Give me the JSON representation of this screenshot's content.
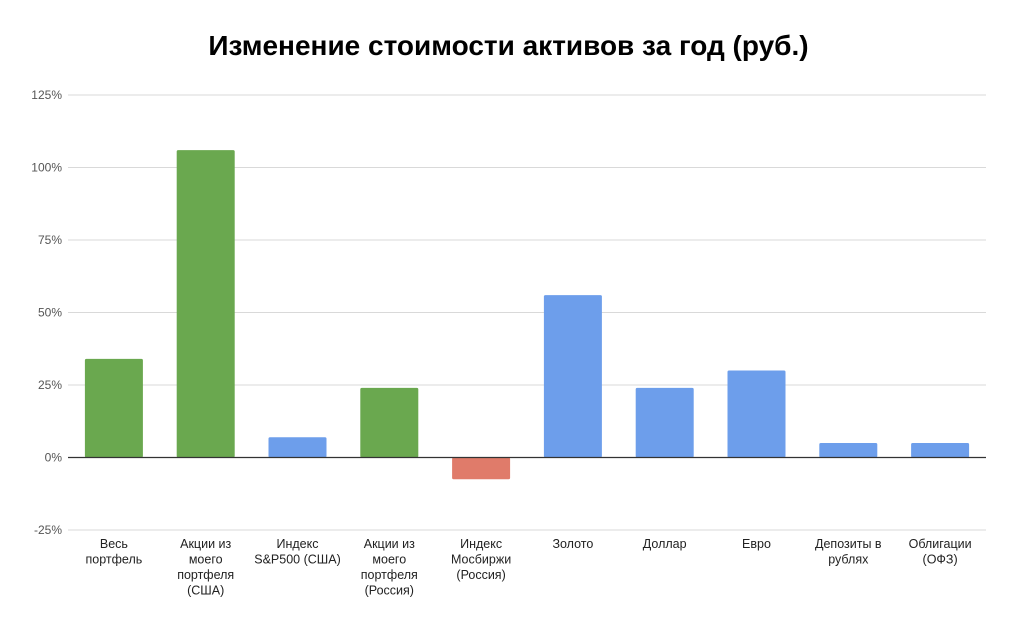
{
  "chart_data": {
    "type": "bar",
    "title": "Изменение стоимости активов за год (руб.)",
    "xlabel": "",
    "ylabel": "",
    "ylim": [
      -25,
      125
    ],
    "yticks": [
      -25,
      0,
      25,
      50,
      75,
      100,
      125
    ],
    "ytick_labels": [
      "-25%",
      "0%",
      "25%",
      "50%",
      "75%",
      "100%",
      "125%"
    ],
    "grid": true,
    "legend": "none",
    "categories": [
      [
        "Весь",
        "портфель"
      ],
      [
        "Акции из",
        "моего",
        "портфеля",
        "(США)"
      ],
      [
        "Индекс",
        "S&P500 (США)"
      ],
      [
        "Акции из",
        "моего",
        "портфеля",
        "(Россия)"
      ],
      [
        "Индекс",
        "Мосбиржи",
        "(Россия)"
      ],
      [
        "Золото"
      ],
      [
        "Доллар"
      ],
      [
        "Евро"
      ],
      [
        "Депозиты в",
        "рублях"
      ],
      [
        "Облигации",
        "(ОФЗ)"
      ]
    ],
    "values": [
      34,
      106,
      7,
      24,
      -7.5,
      56,
      24,
      30,
      5,
      5
    ],
    "bar_colors": [
      "#6aa84f",
      "#6aa84f",
      "#6d9eeb",
      "#6aa84f",
      "#e07b6a",
      "#6d9eeb",
      "#6d9eeb",
      "#6d9eeb",
      "#6d9eeb",
      "#6d9eeb"
    ],
    "colors": {
      "grid": "#d9d9d9",
      "zero_line": "#333333"
    }
  }
}
